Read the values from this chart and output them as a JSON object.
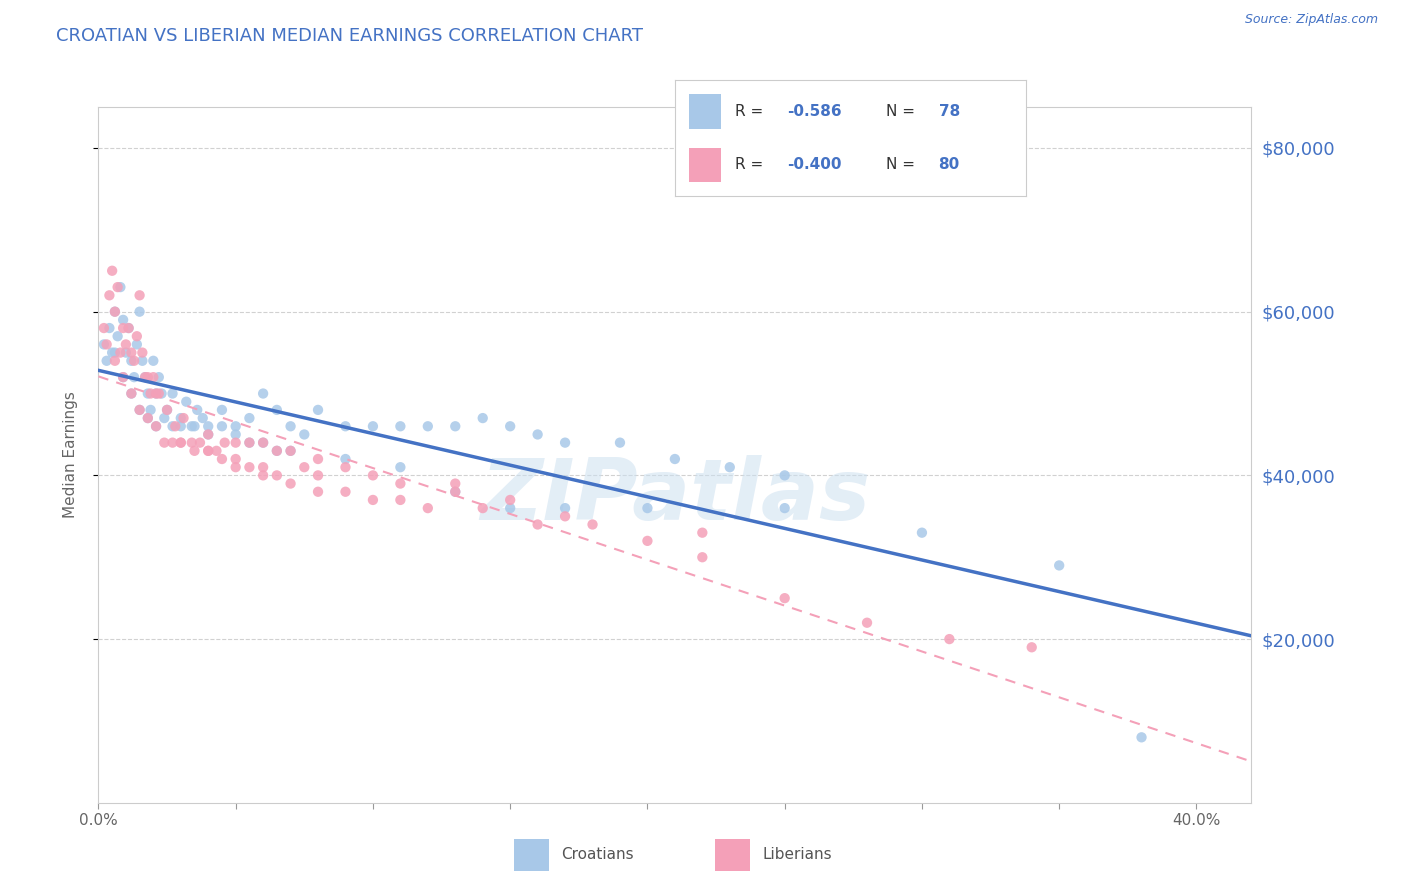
{
  "title": "CROATIAN VS LIBERIAN MEDIAN EARNINGS CORRELATION CHART",
  "source": "Source: ZipAtlas.com",
  "ylabel": "Median Earnings",
  "xlim": [
    0.0,
    0.42
  ],
  "ylim": [
    0,
    85000
  ],
  "yticks": [
    20000,
    40000,
    60000,
    80000
  ],
  "ytick_labels": [
    "$20,000",
    "$40,000",
    "$60,000",
    "$80,000"
  ],
  "background_color": "#ffffff",
  "grid_color": "#cccccc",
  "title_color": "#4472c4",
  "source_color": "#4472c4",
  "watermark": "ZIPatlas",
  "croatian_color": "#a8c8e8",
  "liberian_color": "#f4a0b8",
  "croatian_line_color": "#4472c4",
  "liberian_line_color": "#f4a0b8",
  "croatian_R": "-0.586",
  "croatian_N": "78",
  "liberian_R": "-0.400",
  "liberian_N": "80",
  "croatian_scatter_x": [
    0.002,
    0.004,
    0.005,
    0.006,
    0.007,
    0.008,
    0.009,
    0.01,
    0.011,
    0.012,
    0.013,
    0.014,
    0.015,
    0.016,
    0.017,
    0.018,
    0.019,
    0.02,
    0.021,
    0.022,
    0.023,
    0.025,
    0.027,
    0.03,
    0.032,
    0.034,
    0.036,
    0.038,
    0.04,
    0.045,
    0.05,
    0.055,
    0.06,
    0.065,
    0.07,
    0.075,
    0.08,
    0.09,
    0.1,
    0.11,
    0.12,
    0.13,
    0.14,
    0.15,
    0.16,
    0.17,
    0.19,
    0.21,
    0.23,
    0.25,
    0.003,
    0.006,
    0.009,
    0.012,
    0.015,
    0.018,
    0.021,
    0.024,
    0.027,
    0.03,
    0.035,
    0.04,
    0.045,
    0.05,
    0.055,
    0.06,
    0.065,
    0.07,
    0.09,
    0.11,
    0.13,
    0.15,
    0.17,
    0.2,
    0.25,
    0.3,
    0.35,
    0.38
  ],
  "croatian_scatter_y": [
    56000,
    58000,
    55000,
    60000,
    57000,
    63000,
    59000,
    55000,
    58000,
    54000,
    52000,
    56000,
    60000,
    54000,
    52000,
    50000,
    48000,
    54000,
    50000,
    52000,
    50000,
    48000,
    50000,
    47000,
    49000,
    46000,
    48000,
    47000,
    46000,
    48000,
    46000,
    47000,
    50000,
    48000,
    46000,
    45000,
    48000,
    46000,
    46000,
    46000,
    46000,
    46000,
    47000,
    46000,
    45000,
    44000,
    44000,
    42000,
    41000,
    40000,
    54000,
    55000,
    52000,
    50000,
    48000,
    47000,
    46000,
    47000,
    46000,
    46000,
    46000,
    45000,
    46000,
    45000,
    44000,
    44000,
    43000,
    43000,
    42000,
    41000,
    38000,
    36000,
    36000,
    36000,
    36000,
    33000,
    29000,
    8000
  ],
  "liberian_scatter_x": [
    0.002,
    0.004,
    0.005,
    0.006,
    0.007,
    0.008,
    0.009,
    0.01,
    0.011,
    0.012,
    0.013,
    0.014,
    0.015,
    0.016,
    0.017,
    0.018,
    0.019,
    0.02,
    0.021,
    0.022,
    0.025,
    0.028,
    0.031,
    0.034,
    0.037,
    0.04,
    0.043,
    0.046,
    0.05,
    0.055,
    0.06,
    0.065,
    0.07,
    0.075,
    0.08,
    0.09,
    0.1,
    0.11,
    0.13,
    0.15,
    0.003,
    0.006,
    0.009,
    0.012,
    0.015,
    0.018,
    0.021,
    0.024,
    0.027,
    0.03,
    0.035,
    0.04,
    0.045,
    0.05,
    0.055,
    0.06,
    0.065,
    0.07,
    0.08,
    0.09,
    0.1,
    0.11,
    0.12,
    0.14,
    0.16,
    0.18,
    0.2,
    0.22,
    0.25,
    0.28,
    0.31,
    0.34,
    0.17,
    0.13,
    0.22,
    0.08,
    0.06,
    0.05,
    0.04,
    0.03
  ],
  "liberian_scatter_y": [
    58000,
    62000,
    65000,
    60000,
    63000,
    55000,
    58000,
    56000,
    58000,
    55000,
    54000,
    57000,
    62000,
    55000,
    52000,
    52000,
    50000,
    52000,
    50000,
    50000,
    48000,
    46000,
    47000,
    44000,
    44000,
    45000,
    43000,
    44000,
    44000,
    44000,
    44000,
    43000,
    43000,
    41000,
    42000,
    41000,
    40000,
    39000,
    39000,
    37000,
    56000,
    54000,
    52000,
    50000,
    48000,
    47000,
    46000,
    44000,
    44000,
    44000,
    43000,
    43000,
    42000,
    41000,
    41000,
    40000,
    40000,
    39000,
    38000,
    38000,
    37000,
    37000,
    36000,
    36000,
    34000,
    34000,
    32000,
    30000,
    25000,
    22000,
    20000,
    19000,
    35000,
    38000,
    33000,
    40000,
    41000,
    42000,
    43000,
    44000
  ]
}
